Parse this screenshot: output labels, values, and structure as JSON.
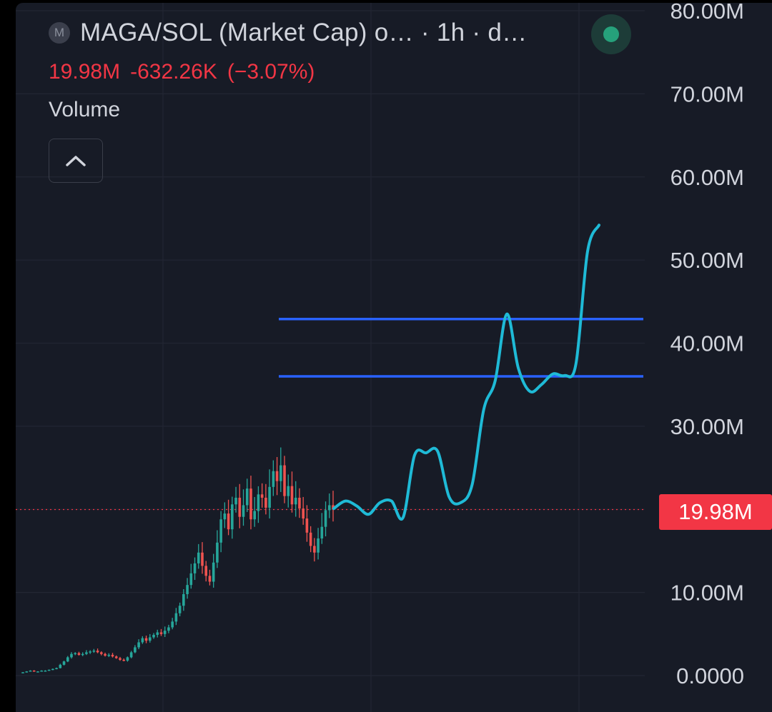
{
  "header": {
    "symbol_icon_letter": "M",
    "title": "MAGA/SOL (Market Cap) o… · 1h · d…",
    "last_value": "19.98M",
    "change": "-632.26K",
    "change_pct": "(−3.07%)",
    "status_color": "#26a17b"
  },
  "indicators": {
    "volume_label": "Volume"
  },
  "last_price_tag": "19.98M",
  "colors": {
    "background": "#171b26",
    "up": "#26a69a",
    "down": "#ef5350",
    "drawing": "#1fbad6",
    "levels": "#2962ff",
    "last_price": "#f23645"
  },
  "chart_data": {
    "type": "candlestick",
    "y_axis": {
      "min": 0,
      "max": 80000000,
      "ticks": [
        "0.0000",
        "10.00M",
        "20.00M",
        "30.00M",
        "40.00M",
        "50.00M",
        "60.00M",
        "70.00M",
        "80.00M"
      ],
      "tick_values": [
        0,
        10000000,
        20000000,
        30000000,
        40000000,
        50000000,
        60000000,
        70000000,
        80000000
      ],
      "visible_ticks": [
        0,
        1,
        3,
        4,
        5,
        6,
        7,
        8
      ]
    },
    "last_price": 19980000,
    "horizontal_levels": [
      42900000,
      36000000
    ],
    "candles_close_m": [
      0.4,
      0.5,
      0.6,
      0.5,
      0.5,
      0.6,
      0.6,
      0.7,
      0.8,
      0.9,
      1.3,
      1.7,
      2.2,
      2.6,
      2.7,
      2.5,
      2.6,
      2.8,
      2.9,
      3.0,
      2.8,
      2.6,
      2.4,
      2.5,
      2.3,
      2.1,
      1.9,
      1.8,
      2.2,
      2.8,
      3.4,
      4.0,
      4.5,
      4.2,
      4.6,
      4.9,
      5.2,
      5.0,
      5.4,
      5.8,
      6.5,
      7.5,
      8.4,
      9.8,
      10.9,
      12.3,
      13.5,
      14.8,
      13.2,
      12.0,
      11.3,
      13.6,
      16.0,
      18.8,
      19.5,
      17.6,
      20.6,
      21.4,
      19.1,
      20.5,
      22.5,
      18.8,
      19.8,
      21.8,
      21.4,
      20.2,
      22.7,
      24.6,
      23.4,
      25.3,
      21.6,
      22.8,
      20.6,
      21.4,
      20.1,
      18.9,
      17.2,
      15.6,
      14.8,
      16.5,
      17.9,
      19.9,
      20.5,
      19.98
    ],
    "projection_points_m": [
      [
        20.1,
        0
      ],
      [
        21.0,
        1
      ],
      [
        20.4,
        2
      ],
      [
        19.4,
        3
      ],
      [
        20.8,
        4
      ],
      [
        21.0,
        5
      ],
      [
        19.0,
        6
      ],
      [
        26.5,
        7
      ],
      [
        26.8,
        8
      ],
      [
        27.0,
        9
      ],
      [
        21.5,
        10
      ],
      [
        20.8,
        11
      ],
      [
        23.0,
        12
      ],
      [
        32.0,
        13
      ],
      [
        35.5,
        14
      ],
      [
        43.5,
        15
      ],
      [
        37.0,
        16
      ],
      [
        34.2,
        17
      ],
      [
        35.0,
        18
      ],
      [
        36.3,
        19
      ],
      [
        36.1,
        20
      ],
      [
        37.5,
        21
      ],
      [
        51.0,
        22
      ],
      [
        54.2,
        23
      ]
    ]
  }
}
